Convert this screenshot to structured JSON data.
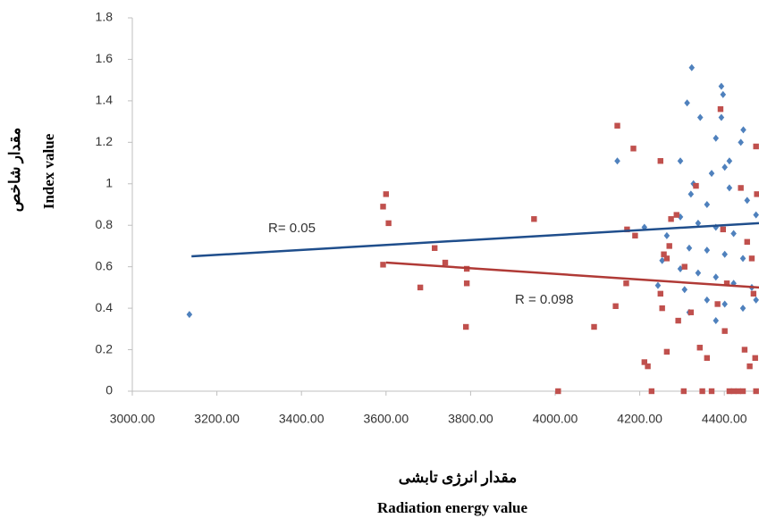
{
  "chart_data": {
    "type": "scatter",
    "x_label_fa": "مقدار انرژی تابشی",
    "x_label": "Radiation energy value",
    "y_label_fa": "مقدار شاخص",
    "y_label": "Index value",
    "xlim": [
      3000,
      4482
    ],
    "ylim": [
      0,
      1.8
    ],
    "xticks": [
      {
        "value": 3000,
        "label": "3000.00"
      },
      {
        "value": 3200,
        "label": "3200.00"
      },
      {
        "value": 3400,
        "label": "3400.00"
      },
      {
        "value": 3600,
        "label": "3600.00"
      },
      {
        "value": 3800,
        "label": "3800.00"
      },
      {
        "value": 4000,
        "label": "4000.00"
      },
      {
        "value": 4200,
        "label": "4200.00"
      },
      {
        "value": 4400,
        "label": "4400.00"
      }
    ],
    "yticks": [
      0,
      0.2,
      0.4,
      0.6,
      0.8,
      1,
      1.2,
      1.4,
      1.6,
      1.8
    ],
    "series": [
      {
        "color": "#4f81bd",
        "marker": "diamond",
        "x": [
          3135,
          4323,
          4393,
          4397,
          4312,
          4393,
          4147,
          4343,
          4380,
          4445,
          4439,
          4412,
          4401,
          4327,
          4321,
          4359,
          4296,
          4338,
          4380,
          4422,
          4264,
          4317,
          4359,
          4401,
          4444,
          4253,
          4296,
          4338,
          4380,
          4422,
          4465,
          4243,
          4306,
          4359,
          4401,
          4444,
          4317,
          4380,
          4475,
          4211,
          4412,
          4454,
          4475,
          4370,
          4296
        ],
        "values": [
          0.37,
          1.56,
          1.47,
          1.43,
          1.39,
          1.32,
          1.11,
          1.32,
          1.22,
          1.26,
          1.2,
          1.11,
          1.08,
          1.0,
          0.95,
          0.9,
          0.84,
          0.81,
          0.79,
          0.76,
          0.75,
          0.69,
          0.68,
          0.66,
          0.64,
          0.63,
          0.59,
          0.57,
          0.55,
          0.52,
          0.5,
          0.51,
          0.49,
          0.44,
          0.42,
          0.4,
          0.38,
          0.34,
          0.44,
          0.79,
          0.98,
          0.92,
          0.85,
          1.05,
          1.11
        ]
      },
      {
        "color": "#c0504d",
        "marker": "square",
        "x": [
          3600,
          3593,
          3606,
          3593,
          3681,
          3715,
          3740,
          3791,
          3791,
          3789,
          3950,
          4007,
          4092,
          4147,
          4185,
          4170,
          4189,
          4143,
          4168,
          4211,
          4219,
          4228,
          4249,
          4264,
          4257,
          4270,
          4274,
          4287,
          4249,
          4253,
          4264,
          4291,
          4306,
          4304,
          4321,
          4333,
          4342,
          4359,
          4348,
          4370,
          4391,
          4397,
          4406,
          4412,
          4422,
          4433,
          4444,
          4475,
          4439,
          4454,
          4465,
          4448,
          4460,
          4473,
          4477,
          4475,
          4384,
          4401,
          4469
        ],
        "values": [
          0.95,
          0.89,
          0.81,
          0.61,
          0.5,
          0.69,
          0.62,
          0.59,
          0.52,
          0.31,
          0.83,
          0,
          0.31,
          1.28,
          1.17,
          0.78,
          0.75,
          0.41,
          0.52,
          0.14,
          0.12,
          0,
          1.11,
          0.64,
          0.66,
          0.7,
          0.83,
          0.85,
          0.47,
          0.4,
          0.19,
          0.34,
          0.6,
          0,
          0.38,
          0.99,
          0.21,
          0.16,
          0,
          0,
          1.36,
          0.78,
          0.52,
          0,
          0,
          0,
          0,
          0,
          0.98,
          0.72,
          0.64,
          0.2,
          0.12,
          0.16,
          0.95,
          1.18,
          0.42,
          0.29,
          0.47
        ]
      }
    ],
    "trend_lines": [
      {
        "color": "#1f4e8c",
        "x": [
          3140,
          4482
        ],
        "values": [
          0.65,
          0.81
        ],
        "label": "R= 0.05"
      },
      {
        "color": "#b03a36",
        "x": [
          3600,
          4482
        ],
        "values": [
          0.62,
          0.5
        ],
        "label": "R = 0.098"
      }
    ]
  }
}
